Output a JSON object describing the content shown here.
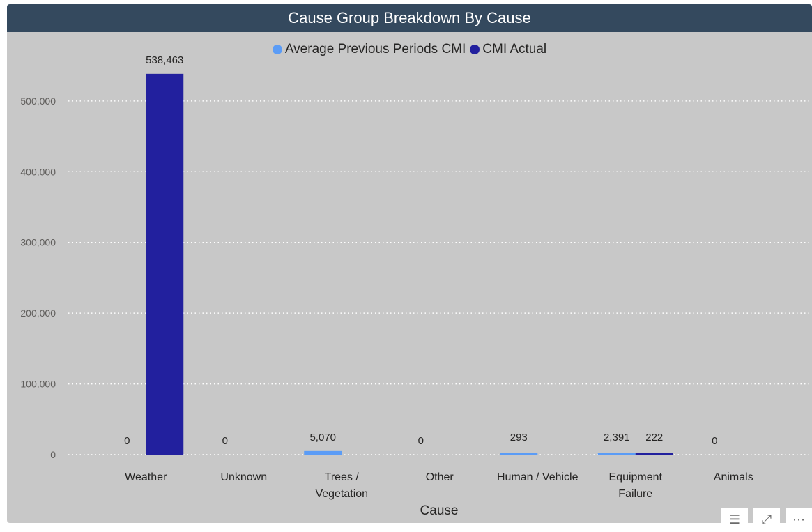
{
  "chart_data": {
    "type": "bar",
    "title": "Cause Group Breakdown By Cause",
    "xlabel": "Cause",
    "ylabel": "",
    "ylim": [
      0,
      560000
    ],
    "yticks": [
      0,
      100000,
      200000,
      300000,
      400000,
      500000
    ],
    "ytick_labels": [
      "0",
      "100,000",
      "200,000",
      "300,000",
      "400,000",
      "500,000"
    ],
    "grid": true,
    "legend_position": "top-center",
    "categories": [
      [
        "Weather"
      ],
      [
        "Unknown"
      ],
      [
        "Trees /",
        "Vegetation"
      ],
      [
        "Other"
      ],
      [
        "Human / Vehicle"
      ],
      [
        "Equipment",
        "Failure"
      ],
      [
        "Animals"
      ]
    ],
    "series": [
      {
        "name": "Average Previous Periods CMI",
        "color": "#5b9cf6",
        "values": [
          0,
          0,
          5070,
          0,
          293,
          2391,
          0
        ],
        "labels": [
          "0",
          "0",
          "5,070",
          "0",
          "293",
          "2,391",
          "0"
        ]
      },
      {
        "name": "CMI Actual",
        "color": "#22209e",
        "values": [
          538463,
          null,
          null,
          null,
          null,
          222,
          null
        ],
        "labels": [
          "538,463",
          "",
          "",
          "",
          "",
          "222",
          ""
        ]
      }
    ]
  },
  "ui": {
    "filter_icon": "filter-icon",
    "focus_icon": "focus-mode-icon",
    "more_icon": "more-options-icon",
    "filter_glyph": "☰",
    "focus_glyph": "⤢",
    "more_glyph": "⋯"
  }
}
